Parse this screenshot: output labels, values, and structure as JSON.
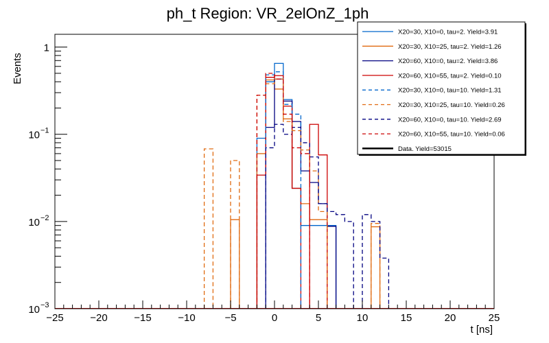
{
  "chart_data": {
    "type": "histogram",
    "title": "ph_t Region: VR_2elOnZ_1ph",
    "xlabel": "t [ns]",
    "ylabel": "Events",
    "xlim": [
      -25,
      25
    ],
    "ylim": [
      0.001,
      1.4
    ],
    "yscale": "log",
    "grid": false,
    "legend_position": "top-right",
    "bin_width": 1,
    "x_ticks": [
      -25,
      -20,
      -15,
      -10,
      -5,
      0,
      5,
      10,
      15,
      20,
      25
    ],
    "x_tick_labels": [
      "−25",
      "−20",
      "−15",
      "−10",
      "−5",
      "0",
      "5",
      "10",
      "15",
      "20",
      "25"
    ],
    "y_ticks": [
      {
        "value": 0.001,
        "base": "10",
        "exp": "−3"
      },
      {
        "value": 0.01,
        "base": "10",
        "exp": "−2"
      },
      {
        "value": 0.1,
        "base": "10",
        "exp": "−1"
      },
      {
        "value": 1,
        "base": "1",
        "exp": ""
      }
    ],
    "series": [
      {
        "name": "X20=30, X10=0, tau=2. Yield=3.91",
        "color": "#0066cc",
        "dash": "solid",
        "bins": [
          [
            -2,
            0.09
          ],
          [
            -1,
            0.4
          ],
          [
            0,
            0.65
          ],
          [
            1,
            0.25
          ],
          [
            2,
            0.024
          ],
          [
            3,
            0.009
          ],
          [
            4,
            0.009
          ],
          [
            5,
            0.009
          ],
          [
            6,
            0.009
          ]
        ]
      },
      {
        "name": "X20=30, X10=25, tau=2. Yield=1.26",
        "color": "#e06a10",
        "dash": "solid",
        "bins": [
          [
            -5,
            0.0105
          ],
          [
            -2,
            0.06
          ],
          [
            -1,
            0.42
          ],
          [
            0,
            0.33
          ],
          [
            1,
            0.15
          ],
          [
            2,
            0.024
          ],
          [
            3,
            0.016
          ],
          [
            4,
            0.0105
          ],
          [
            5,
            0.0105
          ],
          [
            11,
            0.0087
          ]
        ]
      },
      {
        "name": "X20=60, X10=0, tau=2. Yield=3.86",
        "color": "#000080",
        "dash": "solid",
        "bins": [
          [
            -1,
            0.12
          ],
          [
            0,
            0.43
          ],
          [
            1,
            0.24
          ],
          [
            2,
            0.14
          ],
          [
            3,
            0.038
          ],
          [
            4,
            0.028
          ],
          [
            5,
            0.016
          ],
          [
            6,
            0.0088
          ]
        ]
      },
      {
        "name": "X20=60, X10=55, tau=2. Yield=0.10",
        "color": "#cc0000",
        "dash": "solid",
        "bins": [
          [
            -2,
            0.034
          ],
          [
            -1,
            0.45
          ],
          [
            0,
            0.47
          ],
          [
            1,
            0.21
          ],
          [
            2,
            0.024
          ],
          [
            4,
            0.13
          ],
          [
            5,
            0.058
          ]
        ]
      },
      {
        "name": "X20=30, X10=0, tau=10. Yield=1.31",
        "color": "#0066cc",
        "dash": "dashed",
        "bins": [
          [
            -1,
            0.48
          ],
          [
            0,
            0.52
          ],
          [
            1,
            0.22
          ],
          [
            2,
            0.17
          ]
        ]
      },
      {
        "name": "X20=30, X10=25, tau=10. Yield=0.26",
        "color": "#e06a10",
        "dash": "dashed",
        "bins": [
          [
            -8,
            0.068
          ],
          [
            -5,
            0.05
          ],
          [
            -2,
            0.28
          ],
          [
            -1,
            0.38
          ],
          [
            0,
            0.43
          ],
          [
            1,
            0.14
          ],
          [
            2,
            0.11
          ],
          [
            3,
            0.066
          ],
          [
            4,
            0.038
          ],
          [
            5,
            0.013
          ],
          [
            11,
            0.0095
          ]
        ]
      },
      {
        "name": "X20=60, X10=0, tau=10. Yield=2.69",
        "color": "#000080",
        "dash": "dashed",
        "bins": [
          [
            -1,
            0.07
          ],
          [
            0,
            0.13
          ],
          [
            1,
            0.1
          ],
          [
            2,
            0.12
          ],
          [
            3,
            0.08
          ],
          [
            4,
            0.055
          ],
          [
            5,
            0.016
          ],
          [
            6,
            0.013
          ],
          [
            7,
            0.012
          ],
          [
            8,
            0.01
          ],
          [
            10,
            0.012
          ],
          [
            11,
            0.01
          ],
          [
            12,
            0.0038
          ]
        ]
      },
      {
        "name": "X20=60, X10=55, tau=10. Yield=0.06",
        "color": "#cc0000",
        "dash": "dashed",
        "bins": [
          [
            -2,
            0.28
          ],
          [
            -1,
            0.5
          ],
          [
            0,
            0.43
          ],
          [
            1,
            0.17
          ],
          [
            2,
            0.07
          ],
          [
            3,
            0.06
          ]
        ]
      },
      {
        "name": "Data. Yield=53015",
        "color": "#000000",
        "dash": "solid",
        "bold": true,
        "bins": []
      }
    ]
  }
}
